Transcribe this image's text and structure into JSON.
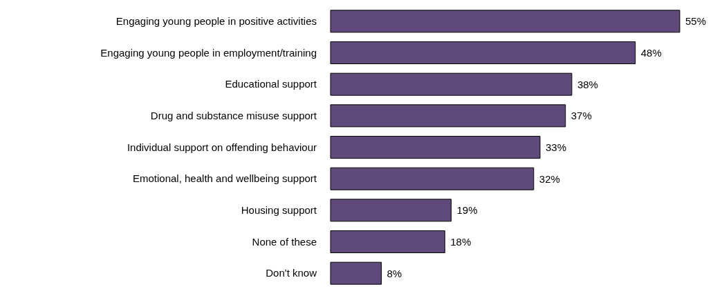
{
  "chart_data": {
    "type": "bar",
    "orientation": "horizontal",
    "categories": [
      "Engaging young people in positive activities",
      "Engaging young people in employment/training",
      "Educational support",
      "Drug and substance misuse support",
      "Individual support on offending behaviour",
      "Emotional, health and wellbeing support",
      "Housing support",
      "None of these",
      "Don't know"
    ],
    "values": [
      55,
      48,
      38,
      37,
      33,
      32,
      19,
      18,
      8
    ],
    "value_labels": [
      "55%",
      "48%",
      "38%",
      "37%",
      "33%",
      "32%",
      "19%",
      "18%",
      "8%"
    ],
    "color": "#604a7b"
  }
}
